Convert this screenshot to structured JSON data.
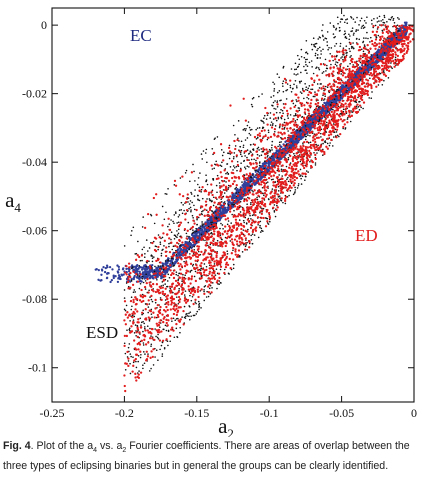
{
  "chart_data": {
    "type": "scatter",
    "title": "",
    "xlabel": {
      "base": "a",
      "sub": "2"
    },
    "ylabel": {
      "base": "a",
      "sub": "4"
    },
    "xlim": [
      -0.25,
      0
    ],
    "ylim": [
      -0.11,
      0.005
    ],
    "xticks": [
      -0.25,
      -0.2,
      -0.15,
      -0.1,
      -0.05,
      0
    ],
    "xtick_labels": [
      "-0.25",
      "-0.2",
      "-0.15",
      "-0.1",
      "-0.05",
      "0"
    ],
    "yticks": [
      0,
      -0.02,
      -0.04,
      -0.06,
      -0.08,
      -0.1
    ],
    "ytick_labels": [
      "0",
      "-0.02",
      "-0.04",
      "-0.06",
      "-0.08",
      "-0.1"
    ],
    "grid": false,
    "series": [
      {
        "name": "EC",
        "color": "#2f3f9a",
        "count": 2600,
        "region": {
          "x_range": [
            -0.235,
            -0.005
          ],
          "a4_upper_near_zero": true
        }
      },
      {
        "name": "ESD",
        "color": "#111111",
        "count": 1900,
        "region": {
          "x_range": [
            -0.2,
            -0.01
          ]
        }
      },
      {
        "name": "ED",
        "color": "#e21d1d",
        "count": 2300,
        "region": {
          "x_range": [
            -0.2,
            0
          ]
        }
      }
    ],
    "annotations": [
      {
        "text": "EC",
        "color": "#1e2a80"
      },
      {
        "text": "ESD",
        "color": "#111111"
      },
      {
        "text": "ED",
        "color": "#e21d1d"
      }
    ]
  },
  "caption": {
    "fig_label": "Fig. 4",
    "text_before_sub4": ". Plot of the a",
    "sub4": "4",
    "text_mid": " vs. a",
    "sub2": "2",
    "text_after": " Fourier coefficients. There are areas of overlap between the three types of eclipsing binaries but in general the groups can be clearly identified."
  }
}
